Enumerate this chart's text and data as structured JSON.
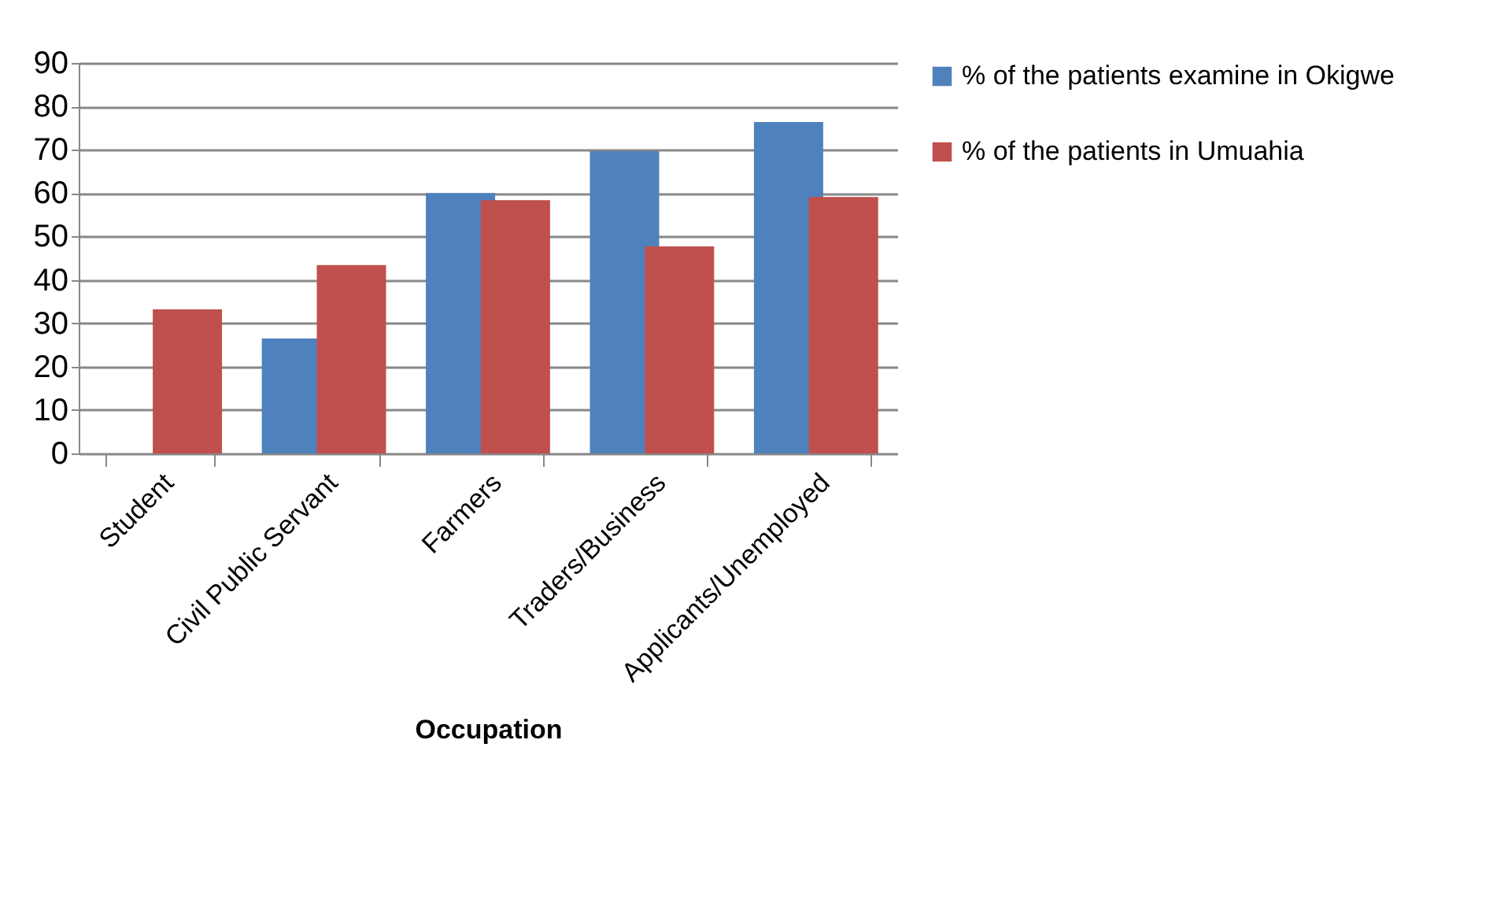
{
  "chart_data": {
    "type": "bar",
    "xlabel": "Occupation",
    "categories": [
      "Student",
      "Civil Public Servant",
      "Farmers",
      "Traders/Business",
      "Applicants/Unemployed"
    ],
    "series": [
      {
        "name": "% of the patients examine in Okigwe",
        "color": "#4f81bd",
        "values": [
          0,
          26.5,
          60,
          69.7,
          76.4
        ]
      },
      {
        "name": "% of the patients in Umuahia",
        "color": "#c0504d",
        "values": [
          33.2,
          43.4,
          58.4,
          47.7,
          59.1
        ]
      }
    ],
    "ylim": [
      0,
      90
    ],
    "yticks": [
      0,
      10,
      20,
      30,
      40,
      50,
      60,
      70,
      80,
      90
    ],
    "grid": "y",
    "legend": "right"
  }
}
